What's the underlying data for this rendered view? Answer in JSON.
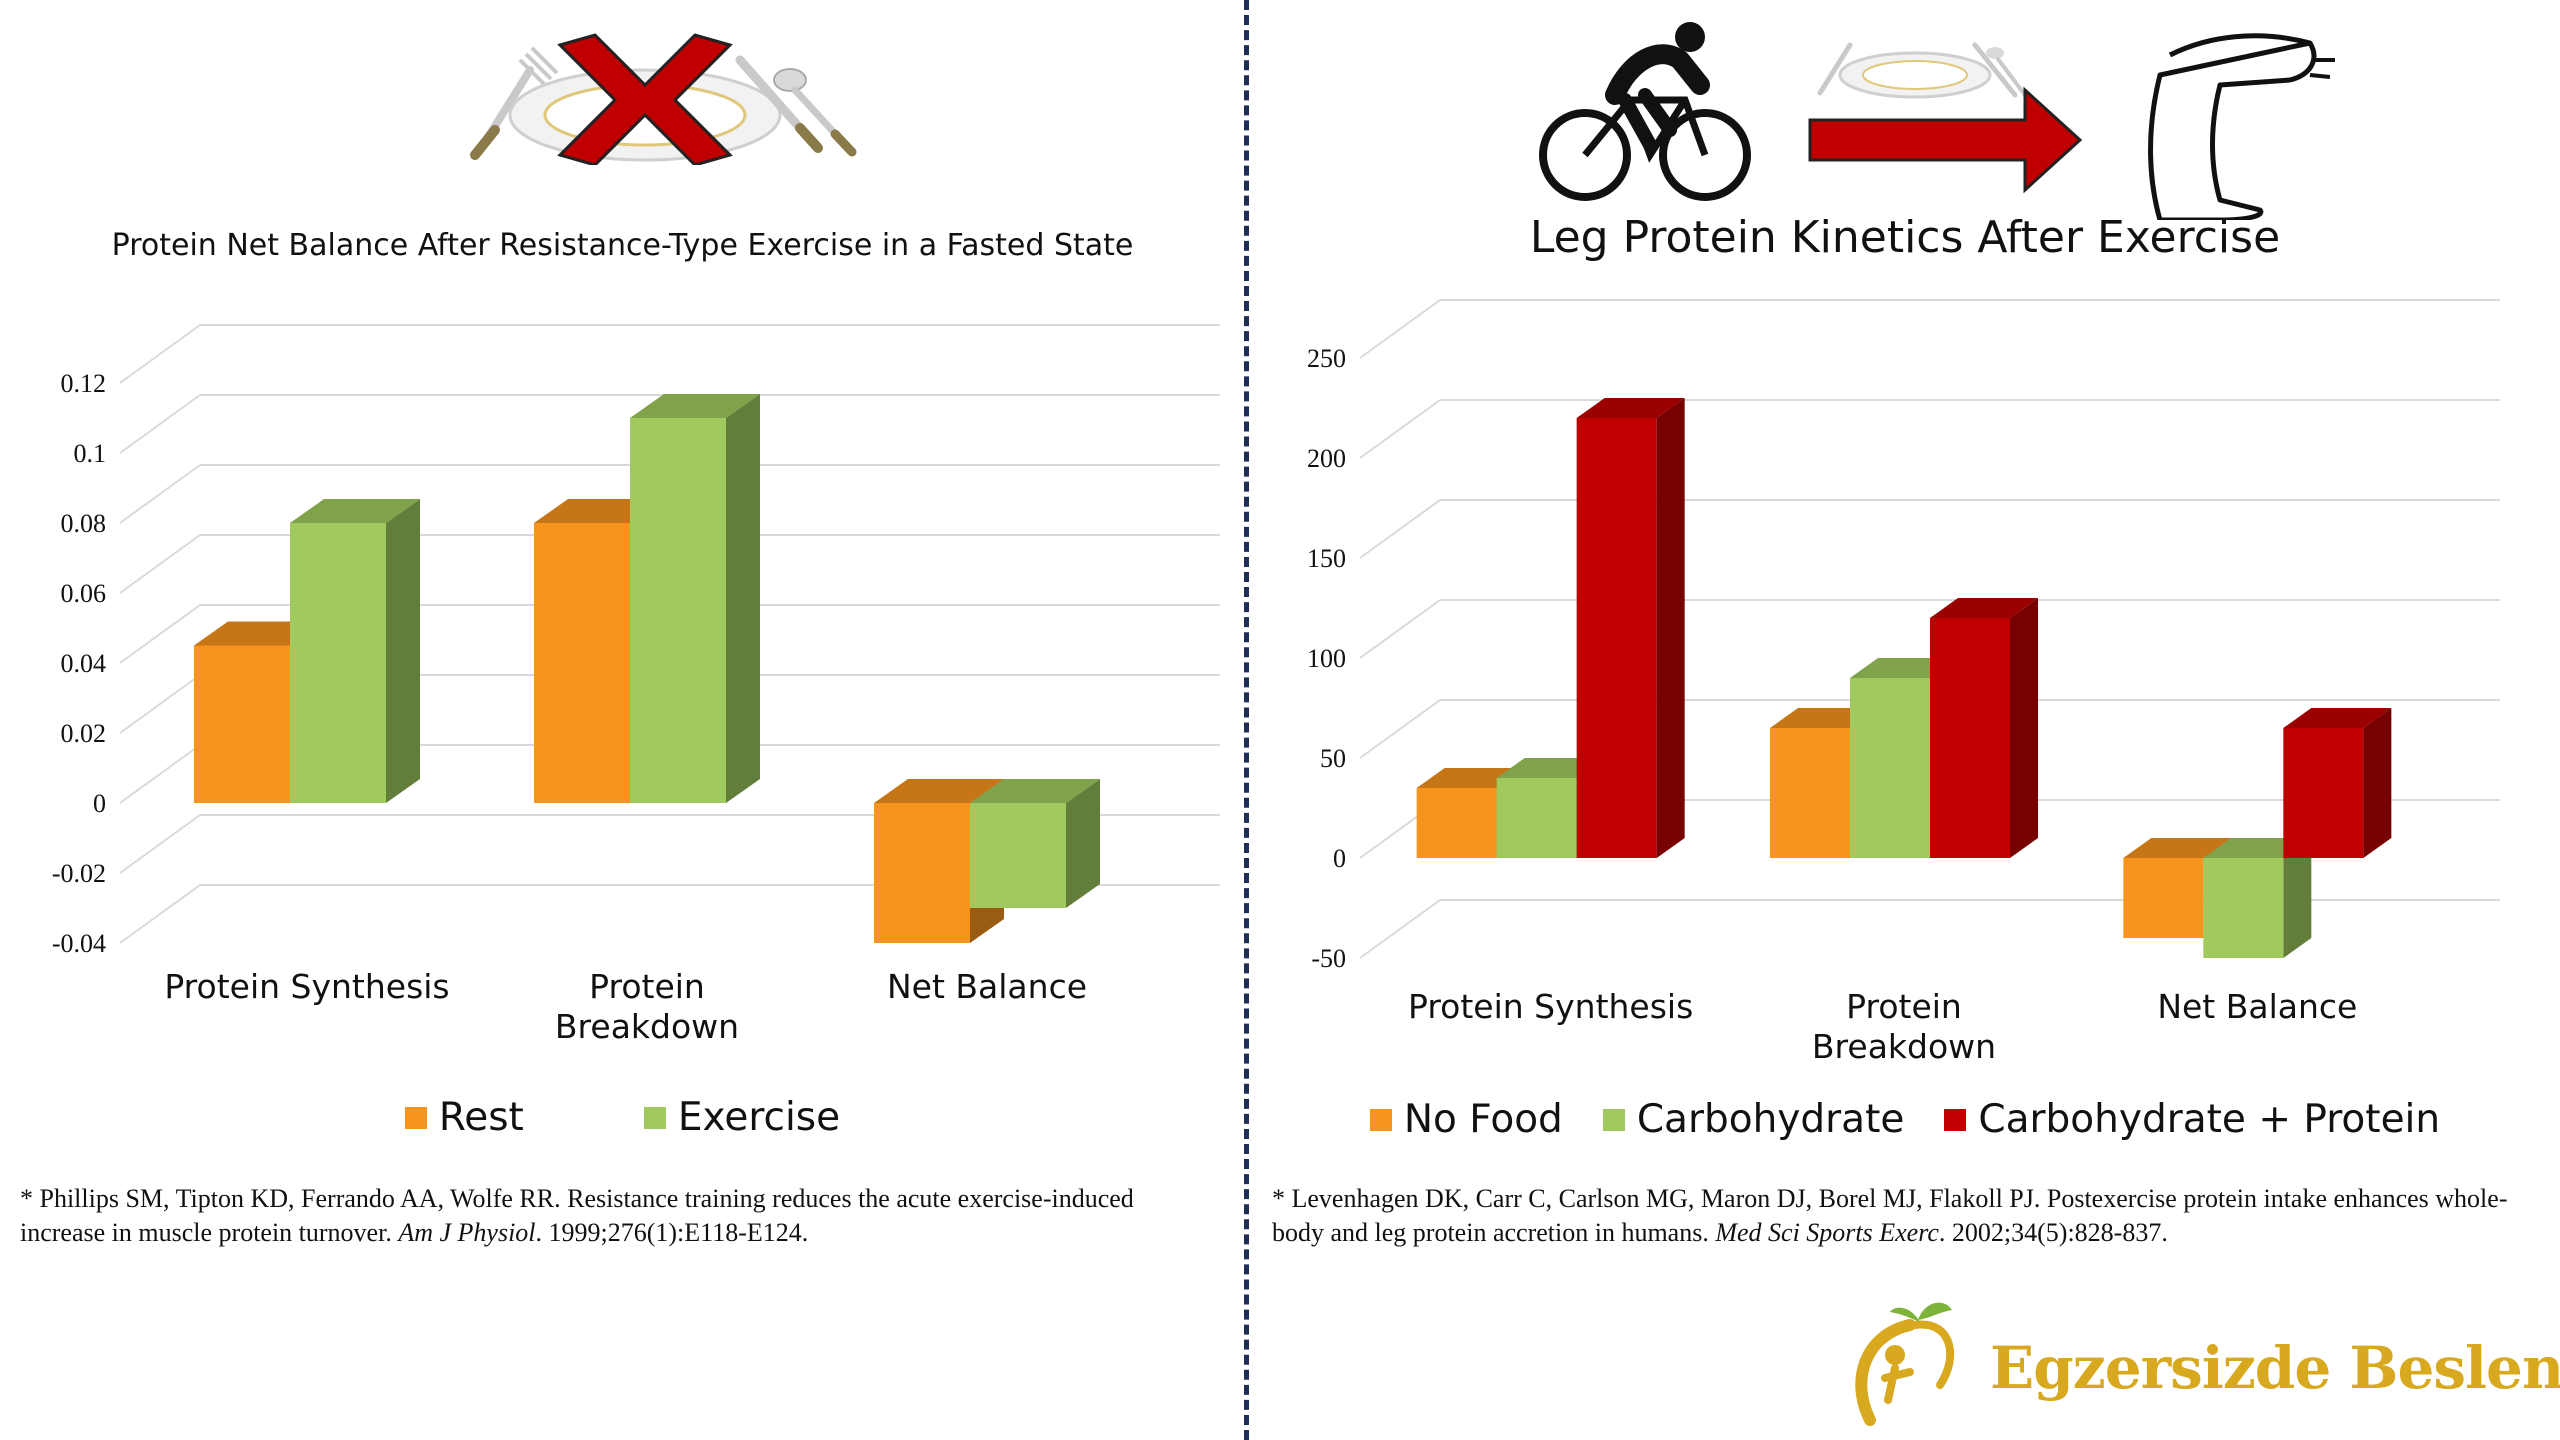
{
  "colors": {
    "divider": "#1f2e55",
    "orange": "#f7941d",
    "green": "#a0ca5d",
    "red": "#c00000",
    "arrow": "#c00000",
    "logo_gold": "#d8a81e",
    "logo_green": "#7db33b"
  },
  "icons": {
    "left": [
      "plate-icon",
      "fork-icon",
      "knife-icon",
      "spoon-icon",
      "cross-icon"
    ],
    "right": [
      "cyclist-icon",
      "plate-icon",
      "fork-icon",
      "knife-icon",
      "spoon-icon",
      "arrow-right-icon",
      "leg-icon"
    ]
  },
  "chart_data": [
    {
      "type": "bar",
      "title": "Protein Net Balance After Resistance-Type Exercise in a Fasted State",
      "categories": [
        "Protein Synthesis",
        "Protein Breakdown",
        "Net Balance"
      ],
      "category_lines": [
        [
          "Protein Synthesis"
        ],
        [
          "Protein",
          "Breakdown"
        ],
        [
          "Net Balance"
        ]
      ],
      "series": [
        {
          "name": "Rest",
          "color": "#f7941d",
          "values": [
            0.045,
            0.08,
            -0.04
          ]
        },
        {
          "name": "Exercise",
          "color": "#a0ca5d",
          "values": [
            0.08,
            0.11,
            -0.03
          ]
        }
      ],
      "ylim": [
        -0.04,
        0.12
      ],
      "yticks": [
        "0.12",
        "0.1",
        "0.08",
        "0.06",
        "0.04",
        "0.02",
        "0",
        "-0.02",
        "-0.04"
      ],
      "grid": true,
      "legend": "bottom"
    },
    {
      "type": "bar",
      "title": "Leg Protein Kinetics After Exercise",
      "categories": [
        "Protein Synthesis",
        "Protein Breakdown",
        "Net Balance"
      ],
      "category_lines": [
        [
          "Protein Synthesis"
        ],
        [
          "Protein",
          "Breakdown"
        ],
        [
          "Net Balance"
        ]
      ],
      "series": [
        {
          "name": "No Food",
          "color": "#f7941d",
          "values": [
            35,
            65,
            -40
          ]
        },
        {
          "name": "Carbohydrate",
          "color": "#a0ca5d",
          "values": [
            40,
            90,
            -50
          ]
        },
        {
          "name": "Carbohydrate + Protein",
          "color": "#c00000",
          "values": [
            220,
            120,
            65
          ]
        }
      ],
      "ylim": [
        -50,
        250
      ],
      "yticks": [
        "250",
        "200",
        "150",
        "100",
        "50",
        "0",
        "-50"
      ],
      "grid": true,
      "legend": "bottom"
    }
  ],
  "citations": {
    "left": {
      "prefix": "* Phillips SM, Tipton KD, Ferrando AA, Wolfe RR. Resistance training reduces the acute exercise-induced increase in muscle protein turnover. ",
      "journal": "Am J Physiol",
      "suffix": ". 1999;276(1):E118-E124."
    },
    "right": {
      "prefix": "* Levenhagen DK, Carr C, Carlson MG, Maron DJ, Borel MJ, Flakoll PJ. Postexercise protein intake enhances whole-body and leg protein accretion in humans. ",
      "journal": "Med Sci Sports Exerc",
      "suffix": ". 2002;34(5):828-837."
    }
  },
  "logo": {
    "text": "Egzersizde Beslenme"
  }
}
